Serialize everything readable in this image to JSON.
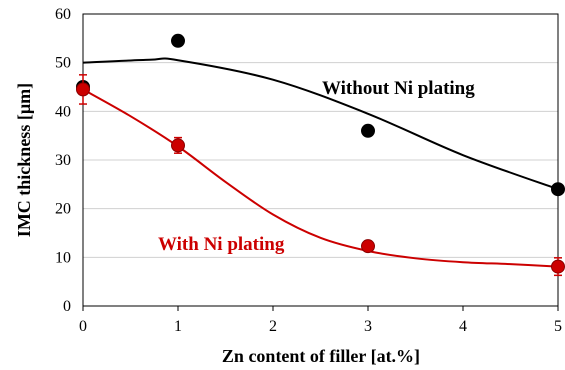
{
  "chart_data": {
    "type": "scatter",
    "title": "",
    "xlabel": "Zn content of filler [at.%]",
    "ylabel": "IMC thickness [µm]",
    "xlim": [
      0,
      5
    ],
    "ylim": [
      0,
      60
    ],
    "xticks": [
      "0",
      "1",
      "2",
      "3",
      "4",
      "5"
    ],
    "yticks": [
      "0",
      "10",
      "20",
      "30",
      "40",
      "50",
      "60"
    ],
    "grid": "horizontal",
    "legend": "none",
    "series": [
      {
        "name": "Without Ni plating",
        "color": "#000000",
        "x": [
          0,
          1,
          3,
          5
        ],
        "y": [
          45,
          54.5,
          36,
          24
        ],
        "trend": [
          [
            0,
            50
          ],
          [
            0.7,
            50.6
          ],
          [
            1,
            50.5
          ],
          [
            2,
            46.5
          ],
          [
            3,
            39.5
          ],
          [
            4,
            31
          ],
          [
            5,
            24
          ]
        ]
      },
      {
        "name": "With Ni plating",
        "color": "#cc0000",
        "x": [
          0,
          1,
          3,
          5
        ],
        "y": [
          44.5,
          33,
          12.3,
          8.1
        ],
        "err": [
          3,
          1.6,
          0.8,
          1.8
        ],
        "trend": [
          [
            0,
            44.5
          ],
          [
            0.5,
            39
          ],
          [
            1,
            32.8
          ],
          [
            1.5,
            25.5
          ],
          [
            2,
            18.8
          ],
          [
            2.5,
            14
          ],
          [
            3,
            11.3
          ],
          [
            3.5,
            9.8
          ],
          [
            4,
            9
          ],
          [
            4.5,
            8.6
          ],
          [
            5,
            8.1
          ]
        ]
      }
    ]
  }
}
